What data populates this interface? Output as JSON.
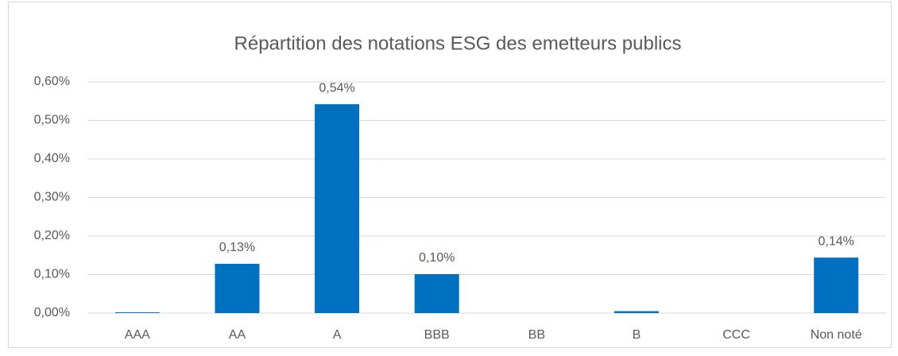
{
  "chart_data": {
    "type": "bar",
    "title": "Répartition des notations ESG des emetteurs publics",
    "categories": [
      "AAA",
      "AA",
      "A",
      "BBB",
      "BB",
      "B",
      "CCC",
      "Non noté"
    ],
    "values": [
      0.002,
      0.128,
      0.542,
      0.101,
      0,
      0.005,
      0,
      0.144
    ],
    "value_labels": [
      null,
      "0,13%",
      "0,54%",
      "0,10%",
      null,
      null,
      null,
      "0,14%"
    ],
    "color": "#0070c0",
    "ylim": [
      0,
      0.6
    ],
    "yticks": [
      {
        "value": 0,
        "label": "0,00%"
      },
      {
        "value": 0.1,
        "label": "0,10%"
      },
      {
        "value": 0.2,
        "label": "0,20%"
      },
      {
        "value": 0.3,
        "label": "0,30%"
      },
      {
        "value": 0.4,
        "label": "0,40%"
      },
      {
        "value": 0.5,
        "label": "0,50%"
      },
      {
        "value": 0.6,
        "label": "0,60%"
      }
    ],
    "grid": true
  }
}
